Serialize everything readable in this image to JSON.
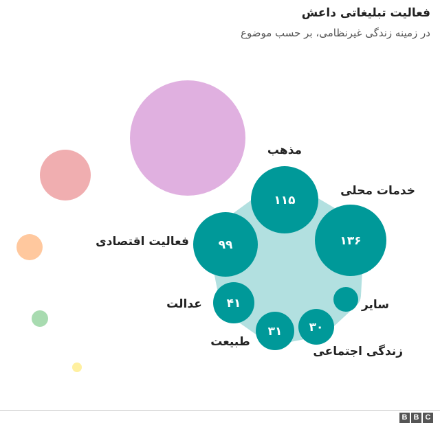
{
  "header": {
    "title": "فعالیت تبلیغاتی داعش",
    "subtitle": "در زمینه زندگی غیرنظامی، بر حسب موضوع"
  },
  "brand": {
    "letters": [
      "B",
      "B",
      "C"
    ]
  },
  "chart_data": {
    "type": "bubble",
    "title": "فعالیت تبلیغاتی داعش",
    "subtitle": "در زمینه زندگی غیرنظامی، بر حسب موضوع",
    "groups": [
      {
        "color": "#e0b0e0"
      },
      {
        "color": "#f0aeb0"
      },
      {
        "color": "#ffc89e"
      },
      {
        "color": "#a8dbb0"
      },
      {
        "color": "#fff0a0"
      },
      {
        "color": "#b2e0e0"
      }
    ],
    "series": [
      {
        "name": "مذهب",
        "label": "۱۱۵",
        "value": 115
      },
      {
        "name": "خدمات محلی",
        "label": "۱۳۶",
        "value": 136
      },
      {
        "name": "سایر",
        "label": "",
        "value": null
      },
      {
        "name": "زندگی اجتماعی",
        "label": "۳۰",
        "value": 30
      },
      {
        "name": "طبیعت",
        "label": "۳۱",
        "value": 31
      },
      {
        "name": "عدالت",
        "label": "۴۱",
        "value": 41
      },
      {
        "name": "فعالیت اقتصادی",
        "label": "۹۹",
        "value": 99
      }
    ],
    "colors": {
      "series": "#009999",
      "label_text": "#ffffff",
      "name_text": "#222222"
    }
  }
}
